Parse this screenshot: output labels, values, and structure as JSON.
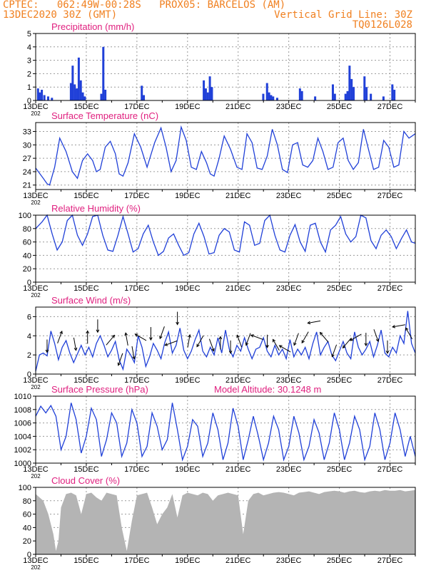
{
  "header": {
    "line1": "CPTEC:   062:49W-00:28S   PROX05: BARCELOS (AM)",
    "line2_left": "13DEC2020 30Z (GMT)",
    "line2_right": "Vertical Grid Line: 30Z",
    "line3_right": "TQ0126L028"
  },
  "colors": {
    "header": "#f08020",
    "title": "#e0207f",
    "series": "#2040d8",
    "cloud": "#b4b4b4",
    "grid": "#9a9a9a"
  },
  "x_ticks": [
    "13DEC",
    "15DEC",
    "17DEC",
    "19DEC",
    "21DEC",
    "23DEC",
    "25DEC",
    "27DEC"
  ],
  "x_tick_year": "202",
  "panels": [
    {
      "key": "precip",
      "title": "Precipitation (mm/h)",
      "extra": ""
    },
    {
      "key": "temp",
      "title": "Surface Temperature (nC)",
      "extra": ""
    },
    {
      "key": "rh",
      "title": "Relative Humidity (%)",
      "extra": ""
    },
    {
      "key": "wind",
      "title": "Surface Wind (m/s)",
      "extra": ""
    },
    {
      "key": "press",
      "title": "Surface Pressure (hPa)",
      "extra": "Model Altitude: 30.1248 m"
    },
    {
      "key": "cloud",
      "title": "Cloud Cover (%)",
      "extra": ""
    }
  ],
  "chart_data": [
    {
      "type": "bar",
      "title": "Precipitation (mm/h)",
      "ylim": [
        0,
        5
      ],
      "yticks": [
        0,
        1,
        2,
        3,
        4,
        5
      ],
      "x_days": [
        0,
        15
      ],
      "events": [
        [
          0.05,
          0.9
        ],
        [
          0.12,
          0.6
        ],
        [
          0.2,
          0.8
        ],
        [
          0.3,
          0.4
        ],
        [
          0.45,
          0.3
        ],
        [
          0.6,
          0.2
        ],
        [
          1.35,
          1.3
        ],
        [
          1.42,
          2.6
        ],
        [
          1.5,
          1.2
        ],
        [
          1.58,
          0.9
        ],
        [
          1.66,
          3.2
        ],
        [
          1.74,
          1.5
        ],
        [
          1.82,
          0.6
        ],
        [
          1.9,
          0.3
        ],
        [
          2.55,
          0.5
        ],
        [
          2.63,
          4.0
        ],
        [
          2.71,
          0.8
        ],
        [
          4.15,
          1.1
        ],
        [
          4.23,
          0.4
        ],
        [
          6.6,
          1.5
        ],
        [
          6.68,
          0.9
        ],
        [
          6.76,
          0.6
        ],
        [
          6.84,
          1.8
        ],
        [
          6.92,
          1.0
        ],
        [
          8.95,
          0.5
        ],
        [
          9.1,
          1.3
        ],
        [
          9.18,
          0.6
        ],
        [
          9.26,
          0.4
        ],
        [
          9.34,
          0.3
        ],
        [
          9.5,
          0.2
        ],
        [
          10.4,
          0.9
        ],
        [
          10.48,
          0.7
        ],
        [
          11.0,
          0.3
        ],
        [
          11.7,
          1.2
        ],
        [
          11.78,
          0.5
        ],
        [
          12.2,
          0.5
        ],
        [
          12.28,
          0.7
        ],
        [
          12.36,
          2.6
        ],
        [
          12.44,
          1.6
        ],
        [
          12.52,
          1.0
        ],
        [
          12.95,
          1.8
        ],
        [
          13.03,
          1.0
        ],
        [
          13.2,
          0.5
        ],
        [
          13.7,
          0.3
        ],
        [
          14.05,
          1.2
        ],
        [
          14.13,
          0.8
        ]
      ]
    },
    {
      "type": "line",
      "title": "Surface Temperature (nC)",
      "ylim": [
        20,
        35
      ],
      "yticks": [
        21,
        24,
        27,
        30,
        33
      ],
      "x_days": [
        0,
        15
      ],
      "x": [
        0,
        0.3,
        0.45,
        0.55,
        0.75,
        0.95,
        1.2,
        1.45,
        1.65,
        1.85,
        2.05,
        2.25,
        2.4,
        2.55,
        2.75,
        2.95,
        3.15,
        3.3,
        3.45,
        3.65,
        3.9,
        4.15,
        4.4,
        4.7,
        4.95,
        5.15,
        5.35,
        5.55,
        5.75,
        5.95,
        6.15,
        6.35,
        6.55,
        6.75,
        6.9,
        7.05,
        7.25,
        7.45,
        7.7,
        7.95,
        8.15,
        8.35,
        8.55,
        8.75,
        8.95,
        9.15,
        9.35,
        9.55,
        9.75,
        9.95,
        10.15,
        10.35,
        10.55,
        10.75,
        10.95,
        11.15,
        11.35,
        11.55,
        11.75,
        11.95,
        12.15,
        12.35,
        12.55,
        12.75,
        12.95,
        13.15,
        13.35,
        13.55,
        13.75,
        13.95,
        14.15,
        14.35,
        14.55,
        14.75,
        15
      ],
      "values": [
        24.8,
        22.5,
        21.3,
        21.0,
        25.0,
        31.5,
        28.5,
        24.0,
        22.5,
        26.5,
        28.0,
        26.5,
        24.0,
        24.5,
        29.5,
        30.8,
        28.0,
        23.5,
        23.0,
        26.0,
        32.5,
        29.5,
        25.0,
        30.5,
        33.8,
        29.5,
        24.0,
        26.5,
        34.0,
        31.0,
        25.0,
        24.5,
        28.5,
        26.0,
        23.5,
        23.0,
        27.0,
        32.0,
        29.0,
        25.0,
        24.5,
        32.5,
        30.5,
        24.8,
        24.5,
        27.5,
        33.5,
        30.0,
        24.5,
        23.8,
        30.0,
        30.5,
        25.5,
        25.0,
        26.5,
        31.5,
        28.5,
        24.5,
        25.0,
        30.5,
        31.5,
        26.5,
        24.5,
        26.0,
        33.5,
        29.0,
        24.5,
        25.0,
        31.0,
        29.5,
        25.0,
        25.5,
        33.0,
        31.5,
        32.5
      ]
    },
    {
      "type": "line",
      "title": "Relative Humidity (%)",
      "ylim": [
        0,
        100
      ],
      "yticks": [
        0,
        20,
        40,
        60,
        80,
        100
      ],
      "x_days": [
        0,
        15
      ],
      "x": [
        0,
        0.25,
        0.45,
        0.65,
        0.85,
        1.05,
        1.25,
        1.45,
        1.65,
        1.85,
        2.05,
        2.25,
        2.45,
        2.65,
        2.85,
        3.05,
        3.25,
        3.45,
        3.65,
        3.85,
        4.05,
        4.25,
        4.45,
        4.65,
        4.85,
        5.05,
        5.25,
        5.45,
        5.65,
        5.85,
        6.05,
        6.25,
        6.45,
        6.65,
        6.85,
        7.05,
        7.25,
        7.45,
        7.65,
        7.85,
        8.05,
        8.25,
        8.45,
        8.65,
        8.85,
        9.05,
        9.25,
        9.45,
        9.65,
        9.85,
        10.05,
        10.25,
        10.45,
        10.65,
        10.85,
        11.05,
        11.25,
        11.45,
        11.65,
        11.85,
        12.05,
        12.25,
        12.45,
        12.65,
        12.85,
        13.05,
        13.25,
        13.45,
        13.65,
        13.85,
        14.05,
        14.25,
        14.45,
        14.65,
        14.85,
        15
      ],
      "values": [
        80,
        90,
        100,
        72,
        48,
        60,
        92,
        100,
        70,
        55,
        72,
        98,
        100,
        70,
        48,
        46,
        70,
        98,
        72,
        45,
        50,
        72,
        85,
        60,
        40,
        46,
        66,
        72,
        55,
        40,
        44,
        72,
        88,
        68,
        42,
        44,
        70,
        80,
        75,
        48,
        45,
        90,
        85,
        55,
        58,
        92,
        100,
        70,
        48,
        45,
        70,
        86,
        60,
        46,
        85,
        88,
        60,
        45,
        78,
        85,
        98,
        72,
        60,
        68,
        100,
        96,
        62,
        50,
        70,
        78,
        68,
        50,
        65,
        78,
        60,
        58
      ]
    },
    {
      "type": "line",
      "title": "Surface Wind (m/s)",
      "ylim": [
        0,
        7
      ],
      "yticks": [
        0,
        2,
        4,
        6
      ],
      "x_days": [
        0,
        15
      ],
      "x": [
        0,
        0.15,
        0.3,
        0.45,
        0.6,
        0.75,
        0.9,
        1.05,
        1.2,
        1.35,
        1.5,
        1.65,
        1.8,
        1.95,
        2.1,
        2.25,
        2.4,
        2.55,
        2.7,
        2.85,
        3.0,
        3.15,
        3.3,
        3.45,
        3.6,
        3.75,
        3.9,
        4.05,
        4.2,
        4.35,
        4.5,
        4.65,
        4.8,
        4.95,
        5.1,
        5.25,
        5.4,
        5.55,
        5.7,
        5.85,
        6.0,
        6.15,
        6.3,
        6.45,
        6.6,
        6.75,
        6.9,
        7.05,
        7.2,
        7.35,
        7.5,
        7.65,
        7.8,
        7.95,
        8.1,
        8.25,
        8.4,
        8.55,
        8.7,
        8.85,
        9.0,
        9.15,
        9.3,
        9.45,
        9.6,
        9.75,
        9.9,
        10.05,
        10.2,
        10.35,
        10.5,
        10.65,
        10.8,
        10.95,
        11.1,
        11.25,
        11.4,
        11.55,
        11.7,
        11.85,
        12.0,
        12.15,
        12.3,
        12.45,
        12.6,
        12.75,
        12.9,
        13.05,
        13.2,
        13.35,
        13.5,
        13.65,
        13.8,
        13.95,
        14.1,
        14.25,
        14.4,
        14.55,
        14.7,
        14.85,
        15
      ],
      "values": [
        0.3,
        2.0,
        2.2,
        1.9,
        4.5,
        3.2,
        1.5,
        2.8,
        3.5,
        2.2,
        1.2,
        2.1,
        3.0,
        2.0,
        2.8,
        1.8,
        3.2,
        4.0,
        3.0,
        1.8,
        2.5,
        3.4,
        1.5,
        0.5,
        2.6,
        2.0,
        1.2,
        4.0,
        2.8,
        0.8,
        1.8,
        3.2,
        2.5,
        1.6,
        3.3,
        4.4,
        2.2,
        3.0,
        4.8,
        2.5,
        1.6,
        2.4,
        3.6,
        4.6,
        2.4,
        1.8,
        2.8,
        2.0,
        3.8,
        2.2,
        4.6,
        2.6,
        1.8,
        3.0,
        2.4,
        3.8,
        2.6,
        1.6,
        2.6,
        2.8,
        3.8,
        2.4,
        1.8,
        3.0,
        2.0,
        2.6,
        1.6,
        3.6,
        1.8,
        2.6,
        2.0,
        2.8,
        1.6,
        3.2,
        4.4,
        2.0,
        2.8,
        3.4,
        2.0,
        1.4,
        2.4,
        3.4,
        2.2,
        1.6,
        4.4,
        2.8,
        2.0,
        2.6,
        3.4,
        1.8,
        3.0,
        4.6,
        2.2,
        1.8,
        2.8,
        2.2,
        4.0,
        3.2,
        6.6,
        3.2,
        2.2
      ],
      "arrows_x": [
        0.45,
        0.95,
        1.55,
        2.05,
        2.45,
        2.95,
        3.35,
        3.6,
        3.85,
        4.15,
        4.55,
        5.0,
        5.35,
        5.6,
        6.05,
        6.5,
        6.95,
        7.3,
        7.7,
        8.05,
        8.4,
        8.75,
        9.15,
        9.5,
        9.85,
        10.3,
        10.65,
        11.0,
        11.4,
        11.8,
        12.3,
        12.65,
        13.05,
        13.45,
        13.9,
        14.35,
        14.75
      ],
      "arrows_dir": [
        180,
        20,
        170,
        0,
        180,
        40,
        200,
        350,
        170,
        300,
        180,
        200,
        250,
        180,
        10,
        210,
        160,
        0,
        180,
        340,
        200,
        290,
        180,
        330,
        300,
        200,
        210,
        260,
        320,
        200,
        220,
        240,
        180,
        160,
        180,
        260,
        330
      ]
    },
    {
      "type": "line",
      "title": "Surface Pressure (hPa)",
      "ylim": [
        1000,
        1010
      ],
      "yticks": [
        1000,
        1002,
        1004,
        1006,
        1008,
        1010
      ],
      "x_days": [
        0,
        15
      ],
      "x": [
        0,
        0.2,
        0.4,
        0.6,
        0.8,
        1.0,
        1.2,
        1.4,
        1.6,
        1.8,
        2.0,
        2.2,
        2.4,
        2.6,
        2.8,
        3.0,
        3.2,
        3.4,
        3.6,
        3.8,
        4.0,
        4.2,
        4.4,
        4.6,
        4.8,
        5.0,
        5.2,
        5.4,
        5.6,
        5.8,
        6.0,
        6.2,
        6.4,
        6.6,
        6.8,
        7.0,
        7.2,
        7.4,
        7.6,
        7.8,
        8.0,
        8.2,
        8.4,
        8.6,
        8.8,
        9.0,
        9.2,
        9.4,
        9.6,
        9.8,
        10.0,
        10.2,
        10.4,
        10.6,
        10.8,
        11.0,
        11.2,
        11.4,
        11.6,
        11.8,
        12.0,
        12.2,
        12.4,
        12.6,
        12.8,
        13.0,
        13.2,
        13.4,
        13.6,
        13.8,
        14.0,
        14.2,
        14.4,
        14.6,
        14.8,
        15
      ],
      "values": [
        1007.0,
        1008.5,
        1007.5,
        1008.6,
        1007.0,
        1002.0,
        1004.0,
        1009.0,
        1006.5,
        1001.5,
        1004.0,
        1008.2,
        1006.5,
        1001.0,
        1003.5,
        1007.5,
        1006.0,
        1001.0,
        1003.0,
        1008.0,
        1006.0,
        1001.0,
        1002.5,
        1007.5,
        1005.5,
        1002.0,
        1003.5,
        1009.0,
        1005.0,
        1000.5,
        1002.5,
        1006.5,
        1005.5,
        1001.0,
        1003.0,
        1007.5,
        1005.0,
        1000.5,
        1003.0,
        1008.2,
        1005.5,
        1000.5,
        1003.5,
        1007.0,
        1004.0,
        1000.5,
        1003.0,
        1007.0,
        1005.0,
        1000.5,
        1002.5,
        1007.0,
        1004.5,
        1000.5,
        1002.5,
        1006.5,
        1004.5,
        1000.5,
        1003.0,
        1007.5,
        1005.0,
        1000.5,
        1003.0,
        1007.0,
        1005.0,
        1000.5,
        1002.5,
        1007.5,
        1005.0,
        1000.5,
        1003.0,
        1007.5,
        1005.0,
        1001.0,
        1004.0,
        1001.0
      ]
    },
    {
      "type": "area",
      "title": "Cloud Cover (%)",
      "ylim": [
        0,
        100
      ],
      "yticks": [
        0,
        20,
        40,
        60,
        80,
        100
      ],
      "x_days": [
        0,
        15
      ],
      "x": [
        0,
        0.3,
        0.5,
        0.7,
        0.8,
        0.9,
        1.0,
        1.2,
        1.4,
        1.6,
        1.8,
        2.0,
        2.2,
        2.4,
        2.6,
        2.8,
        3.0,
        3.2,
        3.4,
        3.6,
        3.8,
        4.0,
        4.2,
        4.4,
        4.6,
        4.8,
        5.0,
        5.2,
        5.4,
        5.6,
        5.8,
        6.0,
        6.2,
        6.4,
        6.6,
        6.8,
        7.0,
        7.2,
        7.4,
        7.6,
        7.8,
        8.0,
        8.2,
        8.4,
        8.6,
        8.8,
        9.0,
        9.2,
        9.4,
        9.6,
        9.8,
        10.0,
        10.2,
        10.4,
        10.6,
        10.8,
        11.0,
        11.2,
        11.4,
        11.6,
        11.8,
        12.0,
        12.2,
        12.4,
        12.6,
        12.8,
        13.0,
        13.2,
        13.4,
        13.6,
        13.8,
        14.0,
        14.2,
        14.4,
        14.6,
        14.8,
        15
      ],
      "values": [
        90,
        80,
        60,
        30,
        5,
        20,
        70,
        90,
        92,
        88,
        60,
        90,
        92,
        85,
        80,
        92,
        90,
        88,
        40,
        5,
        50,
        88,
        90,
        92,
        70,
        45,
        60,
        70,
        90,
        55,
        88,
        92,
        90,
        88,
        92,
        90,
        80,
        88,
        90,
        92,
        90,
        88,
        30,
        80,
        90,
        92,
        88,
        90,
        92,
        93,
        92,
        90,
        88,
        92,
        93,
        94,
        92,
        90,
        93,
        94,
        95,
        94,
        92,
        94,
        95,
        93,
        92,
        94,
        95,
        94,
        96,
        95,
        95,
        96,
        94,
        95,
        96
      ]
    }
  ]
}
